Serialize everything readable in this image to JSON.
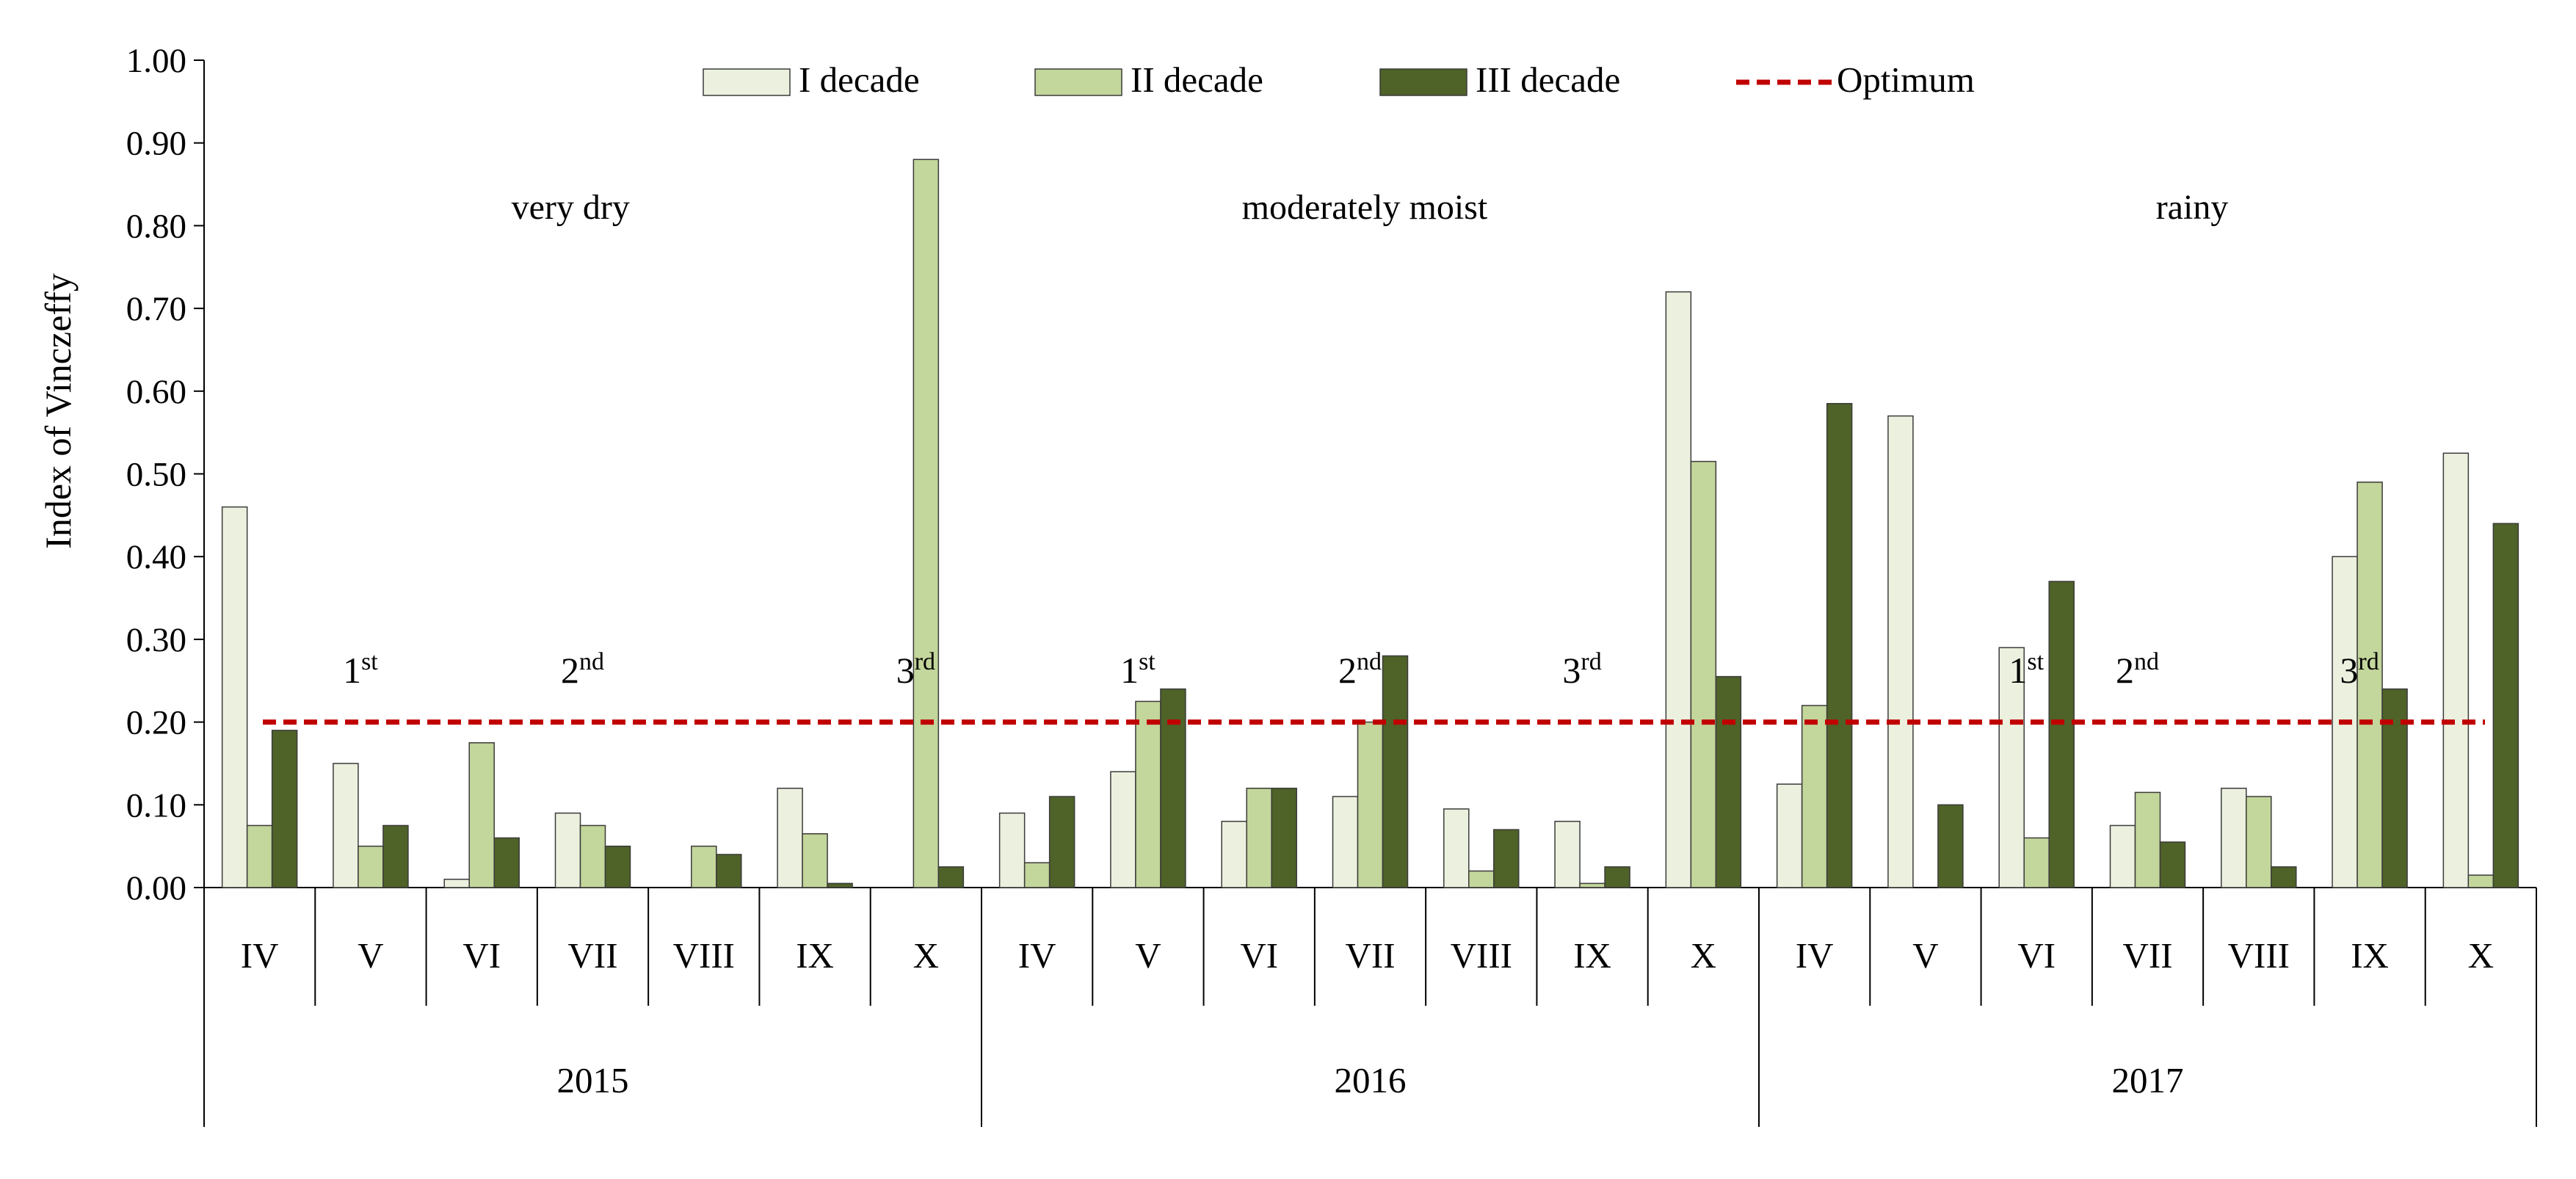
{
  "chart_data": {
    "type": "bar",
    "ylabel": "Index of Vinczeffy",
    "ylim": [
      0,
      1.0
    ],
    "yticks": [
      "0.00",
      "0.10",
      "0.20",
      "0.30",
      "0.40",
      "0.50",
      "0.60",
      "0.70",
      "0.80",
      "0.90",
      "1.00"
    ],
    "years": [
      {
        "label": "2015",
        "note": "very dry",
        "ordinals": [
          {
            "num": "1",
            "sup": "st",
            "month": 1
          },
          {
            "num": "2",
            "sup": "nd",
            "month": 3
          },
          {
            "num": "3",
            "sup": "rd",
            "month": 6
          }
        ]
      },
      {
        "label": "2016",
        "note": "moderately moist",
        "ordinals": [
          {
            "num": "1",
            "sup": "st",
            "month": 1
          },
          {
            "num": "2",
            "sup": "nd",
            "month": 3
          },
          {
            "num": "3",
            "sup": "rd",
            "month": 5
          }
        ]
      },
      {
        "label": "2017",
        "note": "rainy",
        "ordinals": [
          {
            "num": "1",
            "sup": "st",
            "month": 2
          },
          {
            "num": "2",
            "sup": "nd",
            "month": 3
          },
          {
            "num": "3",
            "sup": "rd",
            "month": 5
          }
        ]
      }
    ],
    "months": [
      "IV",
      "V",
      "VI",
      "VII",
      "VIII",
      "IX",
      "X"
    ],
    "series": [
      {
        "name": "I decade",
        "color": "#ebf1de",
        "values": [
          0.46,
          0.15,
          0.01,
          0.09,
          0.0,
          0.12,
          0.0,
          0.09,
          0.14,
          0.08,
          0.11,
          0.095,
          0.08,
          0.72,
          0.125,
          0.57,
          0.29,
          0.075,
          0.12,
          0.4,
          0.525
        ]
      },
      {
        "name": "II decade",
        "color": "#c3d69b",
        "values": [
          0.075,
          0.05,
          0.175,
          0.075,
          0.05,
          0.065,
          0.88,
          0.03,
          0.225,
          0.12,
          0.2,
          0.02,
          0.005,
          0.515,
          0.22,
          0.0,
          0.06,
          0.115,
          0.11,
          0.49,
          0.015
        ]
      },
      {
        "name": "III decade",
        "color": "#4f6228",
        "values": [
          0.19,
          0.075,
          0.06,
          0.05,
          0.04,
          0.005,
          0.025,
          0.11,
          0.24,
          0.12,
          0.28,
          0.07,
          0.025,
          0.255,
          0.585,
          0.1,
          0.37,
          0.055,
          0.025,
          0.24,
          0.44
        ]
      }
    ],
    "optimum": {
      "name": "Optimum",
      "value": 0.2,
      "color": "#c00000"
    }
  }
}
